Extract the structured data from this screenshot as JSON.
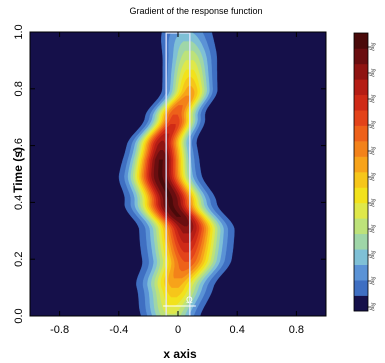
{
  "chart_data": {
    "type": "heatmap",
    "title": "Gradient of the response function",
    "xlabel": "x axis",
    "ylabel": "Time (s)",
    "xlim": [
      -1.0,
      1.0
    ],
    "ylim": [
      0.0,
      1.0
    ],
    "x_ticks": [
      -0.8,
      -0.4,
      0.0,
      0.4,
      0.8
    ],
    "x_tick_labels": [
      "-0.8",
      "-0.4",
      "0",
      "0.4",
      "0.8"
    ],
    "y_ticks": [
      0.0,
      0.2,
      0.4,
      0.6,
      0.8,
      1.0
    ],
    "y_tick_labels": [
      "0.0",
      "0.2",
      "0.4",
      "0.6",
      "0.8",
      "1.0"
    ],
    "grid": false,
    "domain_label": "Ω",
    "domain_x_range": [
      -0.08,
      0.08
    ],
    "band_centerline": {
      "t": [
        0.0,
        0.1,
        0.2,
        0.3,
        0.4,
        0.5,
        0.6,
        0.7,
        0.8,
        0.9,
        1.0
      ],
      "x": [
        -0.05,
        -0.02,
        0.06,
        0.06,
        -0.05,
        -0.12,
        -0.11,
        -0.02,
        0.08,
        0.08,
        0.06
      ]
    },
    "band_peak_value": 0.95,
    "colorbar": {
      "position": "right",
      "colors": [
        "#15104a",
        "#3f6fc2",
        "#5b93d6",
        "#7fc0d6",
        "#9fd6a8",
        "#bde27a",
        "#dfe84a",
        "#f2e21c",
        "#f6c61a",
        "#f7a31a",
        "#f3821a",
        "#ee611a",
        "#e3431a",
        "#cf2a17",
        "#b51d15",
        "#8f1412",
        "#6a0e10",
        "#4a0a0a"
      ],
      "tick_labels": [
        "[ss]",
        "[ss]",
        "[ss]",
        "[ss]",
        "[ss]",
        "[ss]",
        "[ss]",
        "[ss]",
        "[ss]",
        "[ss]",
        "[ss]"
      ]
    }
  }
}
